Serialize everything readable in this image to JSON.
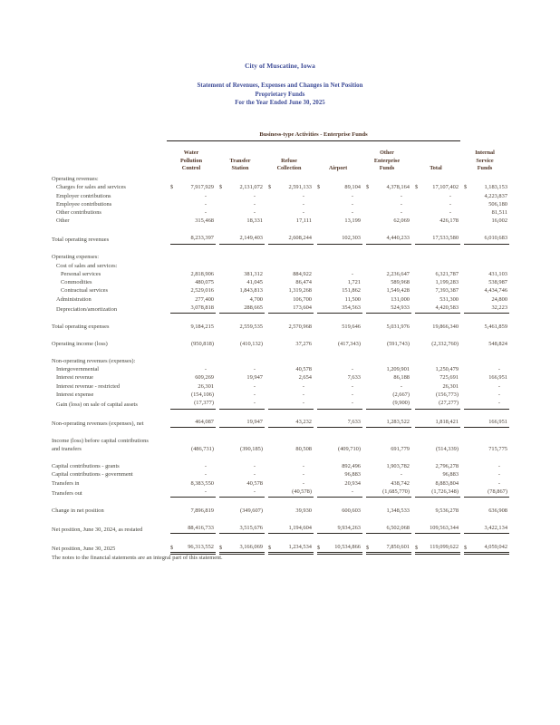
{
  "header": {
    "entity": "City of Muscatine, Iowa",
    "title": "Statement of Revenues, Expenses and Changes in Net Position",
    "fund_type": "Proprietary Funds",
    "period": "For the Year Ended June 30, 2025"
  },
  "colors": {
    "title_text": "#3c4a96",
    "column_header_text": "#503526",
    "body_text": "#4b4037",
    "rule": "#2b2722",
    "page_background": "#ffffff"
  },
  "footnote": "The notes to the financial statements are an integral part of this statement.",
  "table": {
    "group_header": "Business-type Activities - Enterprise Funds",
    "columns": [
      {
        "id": "water-pollution-control",
        "lines": [
          "Water",
          "Pollution",
          "Control"
        ]
      },
      {
        "id": "transfer-station",
        "lines": [
          "Transfer",
          "Station"
        ]
      },
      {
        "id": "refuse-collection",
        "lines": [
          "Refuse",
          "Collection"
        ]
      },
      {
        "id": "airport",
        "lines": [
          "Airport"
        ]
      },
      {
        "id": "other-enterprise-funds",
        "lines": [
          "Other",
          "Enterprise",
          "Funds"
        ]
      },
      {
        "id": "total",
        "lines": [
          "Total"
        ]
      },
      {
        "id": "internal-service-funds",
        "lines": [
          "Internal",
          "Service",
          "Funds"
        ]
      }
    ],
    "rows": [
      {
        "label": "Operating revenues:",
        "indent": 0
      },
      {
        "label": "Charges for sales and services",
        "indent": 1,
        "dollar": true,
        "values": [
          "7,917,929",
          "2,131,072",
          "2,591,133",
          "89,104",
          "4,378,164",
          "17,107,402",
          "1,183,153"
        ]
      },
      {
        "label": "Employer contributions",
        "indent": 1,
        "values": [
          "-",
          "-",
          "-",
          "-",
          "-",
          "-",
          "4,223,837"
        ]
      },
      {
        "label": "Employee contributions",
        "indent": 1,
        "values": [
          "-",
          "-",
          "-",
          "-",
          "-",
          "-",
          "506,180"
        ]
      },
      {
        "label": "Other contributions",
        "indent": 1,
        "values": [
          "-",
          "-",
          "-",
          "-",
          "-",
          "-",
          "81,511"
        ]
      },
      {
        "label": "Other",
        "indent": 1,
        "values": [
          "315,468",
          "18,331",
          "17,111",
          "13,199",
          "62,069",
          "426,178",
          "16,002"
        ]
      },
      {
        "type": "spacer"
      },
      {
        "label": "Total operating revenues",
        "indent": 0,
        "rule": "single",
        "values": [
          "8,233,397",
          "2,149,403",
          "2,608,244",
          "102,303",
          "4,440,233",
          "17,533,580",
          "6,010,683"
        ]
      },
      {
        "type": "spacer"
      },
      {
        "label": "Operating expenses:",
        "indent": 0
      },
      {
        "label": "Cost of sales and services:",
        "indent": 1
      },
      {
        "label": "Personal services",
        "indent": 2,
        "values": [
          "2,818,906",
          "381,312",
          "884,922",
          "-",
          "2,236,647",
          "6,321,787",
          "431,103"
        ]
      },
      {
        "label": "Commodities",
        "indent": 2,
        "values": [
          "480,075",
          "41,045",
          "86,474",
          "1,721",
          "589,968",
          "1,199,283",
          "538,987"
        ]
      },
      {
        "label": "Contractual services",
        "indent": 2,
        "values": [
          "2,529,016",
          "1,843,813",
          "1,319,268",
          "151,862",
          "1,549,428",
          "7,393,387",
          "4,434,746"
        ]
      },
      {
        "label": "Administration",
        "indent": 1,
        "values": [
          "277,400",
          "4,700",
          "106,700",
          "11,500",
          "131,000",
          "531,300",
          "24,800"
        ]
      },
      {
        "label": "Depreciation/amortization",
        "indent": 1,
        "rule": "single",
        "values": [
          "3,078,818",
          "288,665",
          "173,604",
          "354,563",
          "524,933",
          "4,420,583",
          "32,223"
        ]
      },
      {
        "type": "spacer"
      },
      {
        "label": "Total operating expenses",
        "indent": 0,
        "values": [
          "9,184,215",
          "2,559,535",
          "2,570,968",
          "519,646",
          "5,031,976",
          "19,866,340",
          "5,461,859"
        ]
      },
      {
        "type": "spacer"
      },
      {
        "label": "Operating income (loss)",
        "indent": 0,
        "values": [
          "(950,818)",
          "(410,132)",
          "37,276",
          "(417,343)",
          "(591,743)",
          "(2,332,760)",
          "548,824"
        ]
      },
      {
        "type": "spacer"
      },
      {
        "label": "Non-operating revenues (expenses):",
        "indent": 0
      },
      {
        "label": "Intergovernmental",
        "indent": 1,
        "values": [
          "-",
          "-",
          "40,578",
          "-",
          "1,209,901",
          "1,250,479",
          "-"
        ]
      },
      {
        "label": "Interest revenue",
        "indent": 1,
        "values": [
          "609,269",
          "19,947",
          "2,654",
          "7,633",
          "86,188",
          "725,691",
          "166,951"
        ]
      },
      {
        "label": "Interest revenue  - restricted",
        "indent": 1,
        "values": [
          "26,301",
          "-",
          "-",
          "-",
          "-",
          "26,301",
          "-"
        ]
      },
      {
        "label": "Interest expense",
        "indent": 1,
        "values": [
          "(154,106)",
          "-",
          "-",
          "-",
          "(2,667)",
          "(156,773)",
          "-"
        ]
      },
      {
        "label": "Gain (loss) on sale of capital assets",
        "indent": 1,
        "rule": "single",
        "values": [
          "(17,377)",
          "-",
          "-",
          "-",
          "(9,900)",
          "(27,277)",
          "-"
        ]
      },
      {
        "type": "spacer"
      },
      {
        "label": "Non-operating revenues (expenses), net",
        "indent": 0,
        "rule": "single",
        "values": [
          "464,087",
          "19,947",
          "43,232",
          "7,633",
          "1,283,522",
          "1,818,421",
          "166,951"
        ]
      },
      {
        "type": "spacer"
      },
      {
        "label": [
          "Income (loss) before capital contributions",
          "and transfers"
        ],
        "indent": 0,
        "values": [
          "(486,731)",
          "(390,185)",
          "80,508",
          "(409,710)",
          "691,779",
          "(514,339)",
          "715,775"
        ]
      },
      {
        "type": "spacer"
      },
      {
        "label": "Capital contributions - grants",
        "indent": 0,
        "values": [
          "-",
          "-",
          "-",
          "892,496",
          "1,903,782",
          "2,796,278",
          "-"
        ]
      },
      {
        "label": "Capital contributions - government",
        "indent": 0,
        "values": [
          "-",
          "-",
          "-",
          "96,883",
          "-",
          "96,883",
          "-"
        ]
      },
      {
        "label": "Transfers in",
        "indent": 0,
        "values": [
          "8,383,550",
          "40,578",
          "-",
          "20,934",
          "438,742",
          "8,883,804",
          "-"
        ]
      },
      {
        "label": "Transfers out",
        "indent": 0,
        "rule": "single",
        "values": [
          "-",
          "-",
          "(40,578)",
          "-",
          "(1,685,770)",
          "(1,726,348)",
          "(78,867)"
        ]
      },
      {
        "type": "spacer"
      },
      {
        "label": "Change in net position",
        "indent": 0,
        "values": [
          "7,896,819",
          "(349,607)",
          "39,930",
          "600,603",
          "1,348,533",
          "9,536,278",
          "636,908"
        ]
      },
      {
        "type": "spacer"
      },
      {
        "label": "Net position, June 30, 2024, as restated",
        "indent": 0,
        "rule": "single",
        "values": [
          "88,416,733",
          "3,515,676",
          "1,194,604",
          "9,934,263",
          "6,502,068",
          "109,563,344",
          "3,422,134"
        ]
      },
      {
        "type": "spacer"
      },
      {
        "label": "Net position, June 30, 2025",
        "indent": 0,
        "dollar": true,
        "rule": "double",
        "values": [
          "96,313,552",
          "3,166,069",
          "1,234,534",
          "10,534,866",
          "7,850,601",
          "119,099,622",
          "4,059,042"
        ]
      }
    ]
  }
}
